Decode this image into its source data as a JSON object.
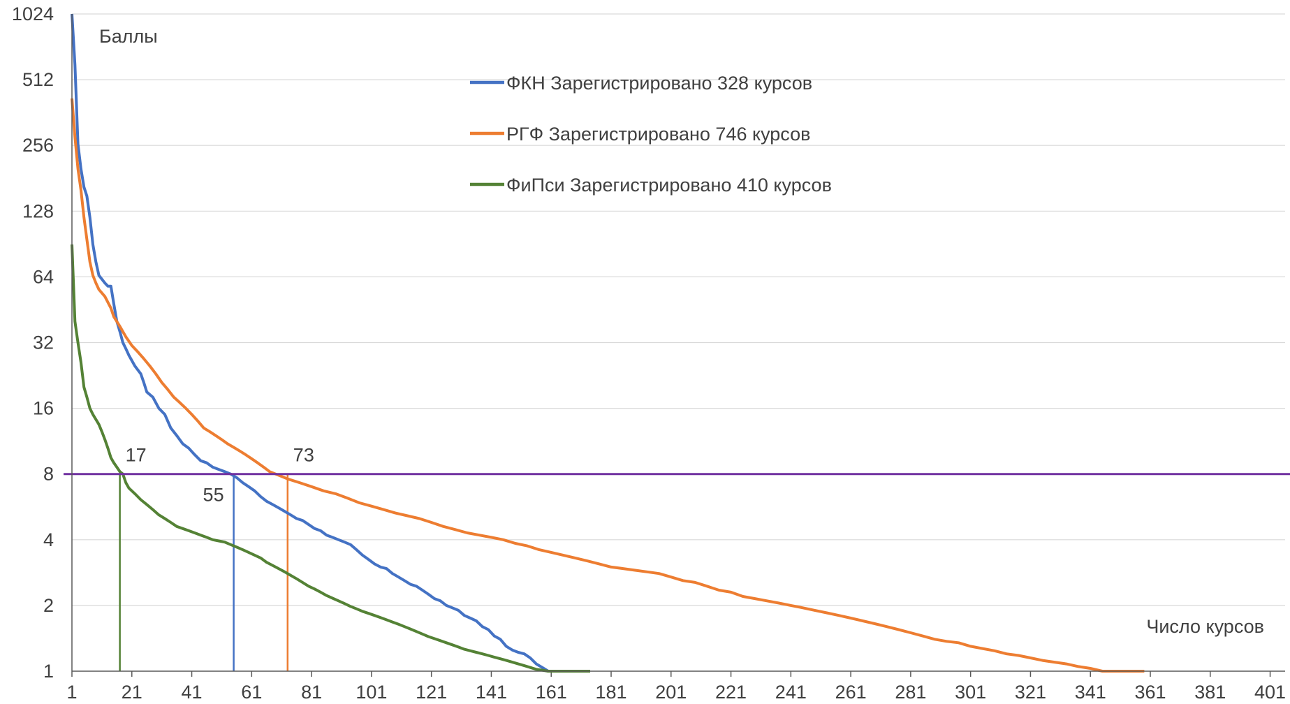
{
  "chart_data": {
    "type": "line",
    "title": "",
    "ylabel": "Баллы",
    "xlabel": "Число курсов",
    "yscale": "log2",
    "ylim": [
      1,
      1024
    ],
    "xlim": [
      1,
      406
    ],
    "y_ticks": [
      "1",
      "2",
      "4",
      "8",
      "16",
      "32",
      "64",
      "128",
      "256",
      "512",
      "1024"
    ],
    "x_ticks": [
      "1",
      "21",
      "41",
      "61",
      "81",
      "101",
      "121",
      "141",
      "161",
      "181",
      "201",
      "221",
      "241",
      "261",
      "281",
      "301",
      "321",
      "341",
      "361",
      "381",
      "401"
    ],
    "grid": true,
    "legend_position": "top-center",
    "threshold": {
      "y": 8,
      "color": "#7030A0"
    },
    "series": [
      {
        "name": "ФКН Зарегистрировано 328 курсов",
        "color": "#4472C4",
        "points": [
          [
            1,
            1024
          ],
          [
            2,
            600
          ],
          [
            3,
            260
          ],
          [
            4,
            200
          ],
          [
            5,
            165
          ],
          [
            6,
            150
          ],
          [
            7,
            120
          ],
          [
            8,
            90
          ],
          [
            9,
            75
          ],
          [
            10,
            65
          ],
          [
            12,
            60
          ],
          [
            13,
            58
          ],
          [
            14,
            58
          ],
          [
            15,
            48
          ],
          [
            16,
            40
          ],
          [
            17,
            36
          ],
          [
            18,
            32
          ],
          [
            19,
            30
          ],
          [
            20,
            28
          ],
          [
            22,
            25
          ],
          [
            24,
            23
          ],
          [
            25,
            21
          ],
          [
            26,
            19
          ],
          [
            28,
            18
          ],
          [
            30,
            16
          ],
          [
            32,
            15
          ],
          [
            34,
            13
          ],
          [
            36,
            12
          ],
          [
            38,
            11
          ],
          [
            40,
            10.5
          ],
          [
            42,
            9.8
          ],
          [
            44,
            9.2
          ],
          [
            46,
            9
          ],
          [
            48,
            8.6
          ],
          [
            50,
            8.4
          ],
          [
            52,
            8.2
          ],
          [
            54,
            8
          ],
          [
            56,
            7.7
          ],
          [
            58,
            7.3
          ],
          [
            60,
            7
          ],
          [
            62,
            6.7
          ],
          [
            64,
            6.3
          ],
          [
            66,
            6
          ],
          [
            68,
            5.8
          ],
          [
            70,
            5.6
          ],
          [
            72,
            5.4
          ],
          [
            74,
            5.2
          ],
          [
            76,
            5
          ],
          [
            78,
            4.9
          ],
          [
            80,
            4.7
          ],
          [
            82,
            4.5
          ],
          [
            84,
            4.4
          ],
          [
            86,
            4.2
          ],
          [
            88,
            4.1
          ],
          [
            90,
            4
          ],
          [
            92,
            3.9
          ],
          [
            94,
            3.8
          ],
          [
            96,
            3.6
          ],
          [
            98,
            3.4
          ],
          [
            100,
            3.25
          ],
          [
            102,
            3.1
          ],
          [
            104,
            3
          ],
          [
            106,
            2.95
          ],
          [
            108,
            2.8
          ],
          [
            110,
            2.7
          ],
          [
            112,
            2.6
          ],
          [
            114,
            2.5
          ],
          [
            116,
            2.45
          ],
          [
            118,
            2.35
          ],
          [
            120,
            2.25
          ],
          [
            122,
            2.15
          ],
          [
            124,
            2.1
          ],
          [
            126,
            2
          ],
          [
            128,
            1.95
          ],
          [
            130,
            1.9
          ],
          [
            132,
            1.8
          ],
          [
            134,
            1.75
          ],
          [
            136,
            1.7
          ],
          [
            138,
            1.6
          ],
          [
            140,
            1.55
          ],
          [
            142,
            1.45
          ],
          [
            144,
            1.4
          ],
          [
            146,
            1.3
          ],
          [
            148,
            1.25
          ],
          [
            150,
            1.22
          ],
          [
            152,
            1.2
          ],
          [
            154,
            1.15
          ],
          [
            156,
            1.08
          ],
          [
            158,
            1.04
          ],
          [
            160,
            1
          ],
          [
            162,
            1
          ]
        ]
      },
      {
        "name": "РГФ Зарегистрировано 746 курсов",
        "color": "#ED7D31",
        "points": [
          [
            1,
            420
          ],
          [
            2,
            280
          ],
          [
            3,
            200
          ],
          [
            4,
            160
          ],
          [
            5,
            120
          ],
          [
            6,
            95
          ],
          [
            7,
            75
          ],
          [
            8,
            65
          ],
          [
            9,
            60
          ],
          [
            10,
            56
          ],
          [
            12,
            52
          ],
          [
            14,
            46
          ],
          [
            15,
            42
          ],
          [
            17,
            38
          ],
          [
            19,
            34
          ],
          [
            21,
            31
          ],
          [
            23,
            29
          ],
          [
            25,
            27
          ],
          [
            27,
            25
          ],
          [
            29,
            23
          ],
          [
            31,
            21
          ],
          [
            33,
            19.5
          ],
          [
            35,
            18
          ],
          [
            37,
            17
          ],
          [
            39,
            16
          ],
          [
            41,
            15
          ],
          [
            43,
            14
          ],
          [
            45,
            13
          ],
          [
            47,
            12.5
          ],
          [
            49,
            12
          ],
          [
            51,
            11.5
          ],
          [
            53,
            11
          ],
          [
            55,
            10.6
          ],
          [
            57,
            10.2
          ],
          [
            59,
            9.8
          ],
          [
            61,
            9.4
          ],
          [
            63,
            9
          ],
          [
            65,
            8.6
          ],
          [
            67,
            8.2
          ],
          [
            69,
            8
          ],
          [
            71,
            7.8
          ],
          [
            73,
            7.6
          ],
          [
            77,
            7.3
          ],
          [
            81,
            7
          ],
          [
            85,
            6.7
          ],
          [
            89,
            6.5
          ],
          [
            93,
            6.2
          ],
          [
            97,
            5.9
          ],
          [
            101,
            5.7
          ],
          [
            105,
            5.5
          ],
          [
            109,
            5.3
          ],
          [
            113,
            5.15
          ],
          [
            117,
            5
          ],
          [
            121,
            4.8
          ],
          [
            125,
            4.6
          ],
          [
            129,
            4.45
          ],
          [
            133,
            4.3
          ],
          [
            137,
            4.2
          ],
          [
            141,
            4.1
          ],
          [
            145,
            4
          ],
          [
            149,
            3.85
          ],
          [
            153,
            3.75
          ],
          [
            157,
            3.6
          ],
          [
            161,
            3.5
          ],
          [
            165,
            3.4
          ],
          [
            169,
            3.3
          ],
          [
            173,
            3.2
          ],
          [
            177,
            3.1
          ],
          [
            181,
            3
          ],
          [
            185,
            2.95
          ],
          [
            189,
            2.9
          ],
          [
            193,
            2.85
          ],
          [
            197,
            2.8
          ],
          [
            201,
            2.7
          ],
          [
            205,
            2.6
          ],
          [
            209,
            2.55
          ],
          [
            213,
            2.45
          ],
          [
            217,
            2.35
          ],
          [
            221,
            2.3
          ],
          [
            225,
            2.2
          ],
          [
            229,
            2.15
          ],
          [
            233,
            2.1
          ],
          [
            237,
            2.05
          ],
          [
            241,
            2
          ],
          [
            245,
            1.95
          ],
          [
            249,
            1.9
          ],
          [
            253,
            1.85
          ],
          [
            257,
            1.8
          ],
          [
            261,
            1.75
          ],
          [
            265,
            1.7
          ],
          [
            269,
            1.65
          ],
          [
            273,
            1.6
          ],
          [
            277,
            1.55
          ],
          [
            281,
            1.5
          ],
          [
            285,
            1.45
          ],
          [
            289,
            1.4
          ],
          [
            293,
            1.37
          ],
          [
            297,
            1.35
          ],
          [
            301,
            1.3
          ],
          [
            305,
            1.27
          ],
          [
            309,
            1.24
          ],
          [
            313,
            1.2
          ],
          [
            317,
            1.18
          ],
          [
            321,
            1.15
          ],
          [
            325,
            1.12
          ],
          [
            329,
            1.1
          ],
          [
            333,
            1.08
          ],
          [
            337,
            1.05
          ],
          [
            341,
            1.03
          ],
          [
            345,
            1
          ],
          [
            359,
            1
          ]
        ]
      },
      {
        "name": "ФиПси Зарегистрировано 410 курсов",
        "color": "#548235",
        "points": [
          [
            1,
            90
          ],
          [
            2,
            40
          ],
          [
            3,
            32
          ],
          [
            4,
            26
          ],
          [
            5,
            20
          ],
          [
            6,
            18
          ],
          [
            7,
            16
          ],
          [
            8,
            15
          ],
          [
            10,
            13.5
          ],
          [
            11,
            12.5
          ],
          [
            12,
            11.5
          ],
          [
            13,
            10.5
          ],
          [
            14,
            9.5
          ],
          [
            15,
            9
          ],
          [
            16,
            8.6
          ],
          [
            17,
            8.2
          ],
          [
            18,
            8
          ],
          [
            19,
            7.3
          ],
          [
            20,
            6.9
          ],
          [
            22,
            6.5
          ],
          [
            24,
            6.1
          ],
          [
            26,
            5.8
          ],
          [
            28,
            5.5
          ],
          [
            30,
            5.2
          ],
          [
            32,
            5
          ],
          [
            34,
            4.8
          ],
          [
            36,
            4.6
          ],
          [
            38,
            4.5
          ],
          [
            40,
            4.4
          ],
          [
            42,
            4.3
          ],
          [
            44,
            4.2
          ],
          [
            46,
            4.1
          ],
          [
            48,
            4
          ],
          [
            50,
            3.95
          ],
          [
            52,
            3.9
          ],
          [
            54,
            3.8
          ],
          [
            56,
            3.7
          ],
          [
            58,
            3.6
          ],
          [
            60,
            3.5
          ],
          [
            62,
            3.4
          ],
          [
            64,
            3.3
          ],
          [
            66,
            3.15
          ],
          [
            68,
            3.05
          ],
          [
            70,
            2.95
          ],
          [
            72,
            2.85
          ],
          [
            74,
            2.75
          ],
          [
            76,
            2.65
          ],
          [
            78,
            2.55
          ],
          [
            80,
            2.45
          ],
          [
            82,
            2.38
          ],
          [
            84,
            2.3
          ],
          [
            86,
            2.22
          ],
          [
            88,
            2.16
          ],
          [
            90,
            2.1
          ],
          [
            92,
            2.04
          ],
          [
            94,
            1.98
          ],
          [
            96,
            1.93
          ],
          [
            98,
            1.88
          ],
          [
            100,
            1.84
          ],
          [
            102,
            1.8
          ],
          [
            104,
            1.76
          ],
          [
            106,
            1.72
          ],
          [
            108,
            1.68
          ],
          [
            110,
            1.64
          ],
          [
            112,
            1.6
          ],
          [
            114,
            1.56
          ],
          [
            116,
            1.52
          ],
          [
            118,
            1.48
          ],
          [
            120,
            1.44
          ],
          [
            122,
            1.41
          ],
          [
            124,
            1.38
          ],
          [
            126,
            1.35
          ],
          [
            128,
            1.32
          ],
          [
            130,
            1.29
          ],
          [
            132,
            1.26
          ],
          [
            134,
            1.24
          ],
          [
            136,
            1.22
          ],
          [
            138,
            1.2
          ],
          [
            140,
            1.18
          ],
          [
            142,
            1.16
          ],
          [
            144,
            1.14
          ],
          [
            146,
            1.12
          ],
          [
            148,
            1.1
          ],
          [
            150,
            1.08
          ],
          [
            152,
            1.06
          ],
          [
            154,
            1.04
          ],
          [
            156,
            1.02
          ],
          [
            158,
            1.01
          ],
          [
            160,
            1
          ],
          [
            174,
            1
          ]
        ]
      }
    ],
    "drop_lines": [
      {
        "x": 17,
        "label": "17",
        "color": "#548235"
      },
      {
        "x": 55,
        "label": "55",
        "color": "#4472C4"
      },
      {
        "x": 73,
        "label": "73",
        "color": "#ED7D31"
      }
    ]
  }
}
